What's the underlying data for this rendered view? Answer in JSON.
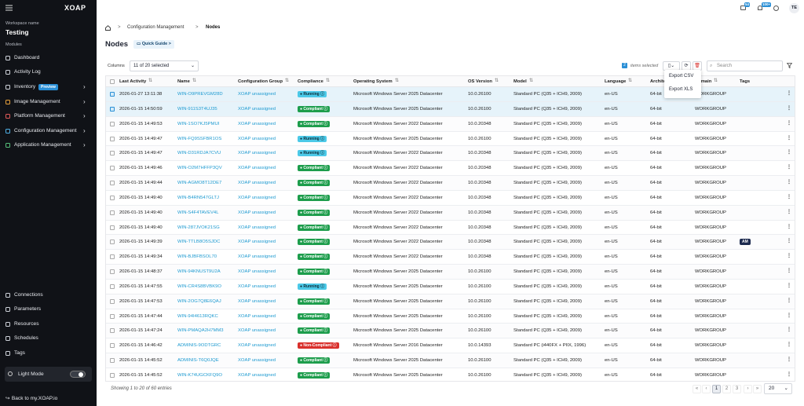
{
  "sidebar": {
    "logo": "XOAP",
    "workspace_label": "Workspace name",
    "workspace": "Testing",
    "modules_label": "Modules",
    "nav": [
      {
        "label": "Dashboard"
      },
      {
        "label": "Activity Log"
      },
      {
        "label": "Inventory",
        "badge": "Preview",
        "arrow": true
      },
      {
        "label": "Image Management",
        "arrow": true
      },
      {
        "label": "Platform Management",
        "arrow": true
      },
      {
        "label": "Configuration Management",
        "arrow": true
      },
      {
        "label": "Application Management",
        "arrow": true
      }
    ],
    "bottom_nav": [
      "Connections",
      "Parameters",
      "Resources",
      "Schedules",
      "Tags"
    ],
    "light_mode": "Light Mode",
    "back_link": "Back to my.XOAP.io"
  },
  "topbar": {
    "badges": [
      "54",
      "100+"
    ],
    "avatar": "TE"
  },
  "breadcrumb": [
    "Configuration Management",
    "Nodes"
  ],
  "page_title": "Nodes",
  "quick_guide": "Quick Guide",
  "toolbar": {
    "columns_label": "Columns",
    "columns_select": "11 of 20 selected",
    "selected_count": "2",
    "selected_label": "items selected",
    "search_placeholder": "Search",
    "export_menu": [
      "Export CSV",
      "Export XLS"
    ]
  },
  "table": {
    "headers": [
      "Last Activity",
      "Name",
      "Configuration Group",
      "Compliance",
      "Operating System",
      "OS Version",
      "Model",
      "Language",
      "Architecture",
      "Domain",
      "Tags"
    ],
    "rows": [
      {
        "selected": true,
        "cells": [
          "2026-01-27 13:11:38",
          "WIN-O9PREVGM28D",
          "XOAP unassigned",
          "Running",
          "Microsoft Windows Server 2025 Datacenter",
          "10.0.26100",
          "Standard PC (Q35 + ICH9, 2009)",
          "en-US",
          "64-bit",
          "WORKGROUP"
        ]
      },
      {
        "selected": true,
        "cells": [
          "2026-01-15 14:50:59",
          "WIN-911S3T4UJ35",
          "XOAP unassigned",
          "Compliant",
          "Microsoft Windows Server 2025 Datacenter",
          "10.0.26100",
          "Standard PC (Q35 + ICH9, 2009)",
          "en-US",
          "64-bit",
          "WORKGROUP"
        ]
      },
      {
        "cells": [
          "2026-01-15 14:49:53",
          "WIN-1SO7KJ5PMUI",
          "XOAP unassigned",
          "Compliant",
          "Microsoft Windows Server 2022 Datacenter",
          "10.0.20348",
          "Standard PC (Q35 + ICH9, 2009)",
          "en-US",
          "64-bit",
          "WORKGROUP"
        ]
      },
      {
        "cells": [
          "2026-01-15 14:49:47",
          "WIN-FQ9SSFBR1OS",
          "XOAP unassigned",
          "Running",
          "Microsoft Windows Server 2025 Datacenter",
          "10.0.26100",
          "Standard PC (Q35 + ICH9, 2009)",
          "en-US",
          "64-bit",
          "WORKGROUP"
        ]
      },
      {
        "cells": [
          "2026-01-15 14:49:47",
          "WIN-D31RDJA7CVU",
          "XOAP unassigned",
          "Running",
          "Microsoft Windows Server 2022 Datacenter",
          "10.0.20348",
          "Standard PC (Q35 + ICH9, 2009)",
          "en-US",
          "64-bit",
          "WORKGROUP"
        ]
      },
      {
        "cells": [
          "2026-01-15 14:49:46",
          "WIN-O2M7HFFP3QV",
          "XOAP unassigned",
          "Compliant",
          "Microsoft Windows Server 2022 Datacenter",
          "10.0.20348",
          "Standard PC (Q35 + ICH9, 2009)",
          "en-US",
          "64-bit",
          "WORKGROUP"
        ]
      },
      {
        "cells": [
          "2026-01-15 14:49:44",
          "WIN-AGMO8T12DE7",
          "XOAP unassigned",
          "Compliant",
          "Microsoft Windows Server 2022 Datacenter",
          "10.0.20348",
          "Standard PC (Q35 + ICH9, 2009)",
          "en-US",
          "64-bit",
          "WORKGROUP"
        ]
      },
      {
        "cells": [
          "2026-01-15 14:49:40",
          "WIN-B4RN547GLTJ",
          "XOAP unassigned",
          "Compliant",
          "Microsoft Windows Server 2022 Datacenter",
          "10.0.20348",
          "Standard PC (Q35 + ICH9, 2009)",
          "en-US",
          "64-bit",
          "WORKGROUP"
        ]
      },
      {
        "cells": [
          "2026-01-15 14:49:40",
          "WIN-S4F4TAVEV4L",
          "XOAP unassigned",
          "Compliant",
          "Microsoft Windows Server 2022 Datacenter",
          "10.0.20348",
          "Standard PC (Q35 + ICH9, 2009)",
          "en-US",
          "64-bit",
          "WORKGROUP"
        ]
      },
      {
        "cells": [
          "2026-01-15 14:49:40",
          "WIN-287JVOK21SG",
          "XOAP unassigned",
          "Compliant",
          "Microsoft Windows Server 2022 Datacenter",
          "10.0.20348",
          "Standard PC (Q35 + ICH9, 2009)",
          "en-US",
          "64-bit",
          "WORKGROUP"
        ]
      },
      {
        "cells": [
          "2026-01-15 14:49:39",
          "WIN-TTLB8O5SJDC",
          "XOAP unassigned",
          "Compliant",
          "Microsoft Windows Server 2022 Datacenter",
          "10.0.20348",
          "Standard PC (Q35 + ICH9, 2009)",
          "en-US",
          "64-bit",
          "WORKGROUP"
        ],
        "tags": [
          "AM"
        ]
      },
      {
        "cells": [
          "2026-01-15 14:49:34",
          "WIN-BJBFBSOL70",
          "XOAP unassigned",
          "Compliant",
          "Microsoft Windows Server 2022 Datacenter",
          "10.0.20348",
          "Standard PC (Q35 + ICH9, 2009)",
          "en-US",
          "64-bit",
          "WORKGROUP"
        ]
      },
      {
        "cells": [
          "2026-01-15 14:48:37",
          "WIN-94KNUST9U2A",
          "XOAP unassigned",
          "Compliant",
          "Microsoft Windows Server 2025 Datacenter",
          "10.0.26100",
          "Standard PC (Q35 + ICH9, 2009)",
          "en-US",
          "64-bit",
          "WORKGROUP"
        ]
      },
      {
        "cells": [
          "2026-01-15 14:47:55",
          "WIN-CR4S8BVBK9O",
          "XOAP unassigned",
          "Running",
          "Microsoft Windows Server 2025 Datacenter",
          "10.0.26100",
          "Standard PC (Q35 + ICH9, 2009)",
          "en-US",
          "64-bit",
          "WORKGROUP"
        ]
      },
      {
        "cells": [
          "2026-01-15 14:47:53",
          "WIN-2OG7Q8E6QAJ",
          "XOAP unassigned",
          "Compliant",
          "Microsoft Windows Server 2025 Datacenter",
          "10.0.26100",
          "Standard PC (Q35 + ICH9, 2009)",
          "en-US",
          "64-bit",
          "WORKGROUP"
        ]
      },
      {
        "cells": [
          "2026-01-15 14:47:44",
          "WIN-94I4613RQKC",
          "XOAP unassigned",
          "Compliant",
          "Microsoft Windows Server 2025 Datacenter",
          "10.0.26100",
          "Standard PC (Q35 + ICH9, 2009)",
          "en-US",
          "64-bit",
          "WORKGROUP"
        ]
      },
      {
        "cells": [
          "2026-01-15 14:47:24",
          "WIN-PMAQA2H7MM3",
          "XOAP unassigned",
          "Compliant",
          "Microsoft Windows Server 2025 Datacenter",
          "10.0.26100",
          "Standard PC (Q35 + ICH9, 2009)",
          "en-US",
          "64-bit",
          "WORKGROUP"
        ]
      },
      {
        "cells": [
          "2026-01-15 14:46:42",
          "ADMINIS-9ODTGRC",
          "XOAP unassigned",
          "Non-Compliant",
          "Microsoft Windows Server 2016 Datacenter",
          "10.0.14393",
          "Standard PC (i440FX + PIIX, 1996)",
          "en-US",
          "64-bit",
          "WORKGROUP"
        ]
      },
      {
        "cells": [
          "2026-01-15 14:45:52",
          "ADMINIS-T6Q0JQE",
          "XOAP unassigned",
          "Compliant",
          "Microsoft Windows Server 2025 Datacenter",
          "10.0.26100",
          "Standard PC (Q35 + ICH9, 2009)",
          "en-US",
          "64-bit",
          "WORKGROUP"
        ]
      },
      {
        "cells": [
          "2026-01-15 14:45:52",
          "WIN-K74UGCKFQ9O",
          "XOAP unassigned",
          "Compliant",
          "Microsoft Windows Server 2025 Datacenter",
          "10.0.26100",
          "Standard PC (Q35 + ICH9, 2009)",
          "en-US",
          "64-bit",
          "WORKGROUP"
        ]
      }
    ]
  },
  "footer": {
    "summary": "Showing 1 to 20 of 60 entries",
    "pages": [
      "1",
      "2",
      "3"
    ],
    "page_size": "20"
  }
}
